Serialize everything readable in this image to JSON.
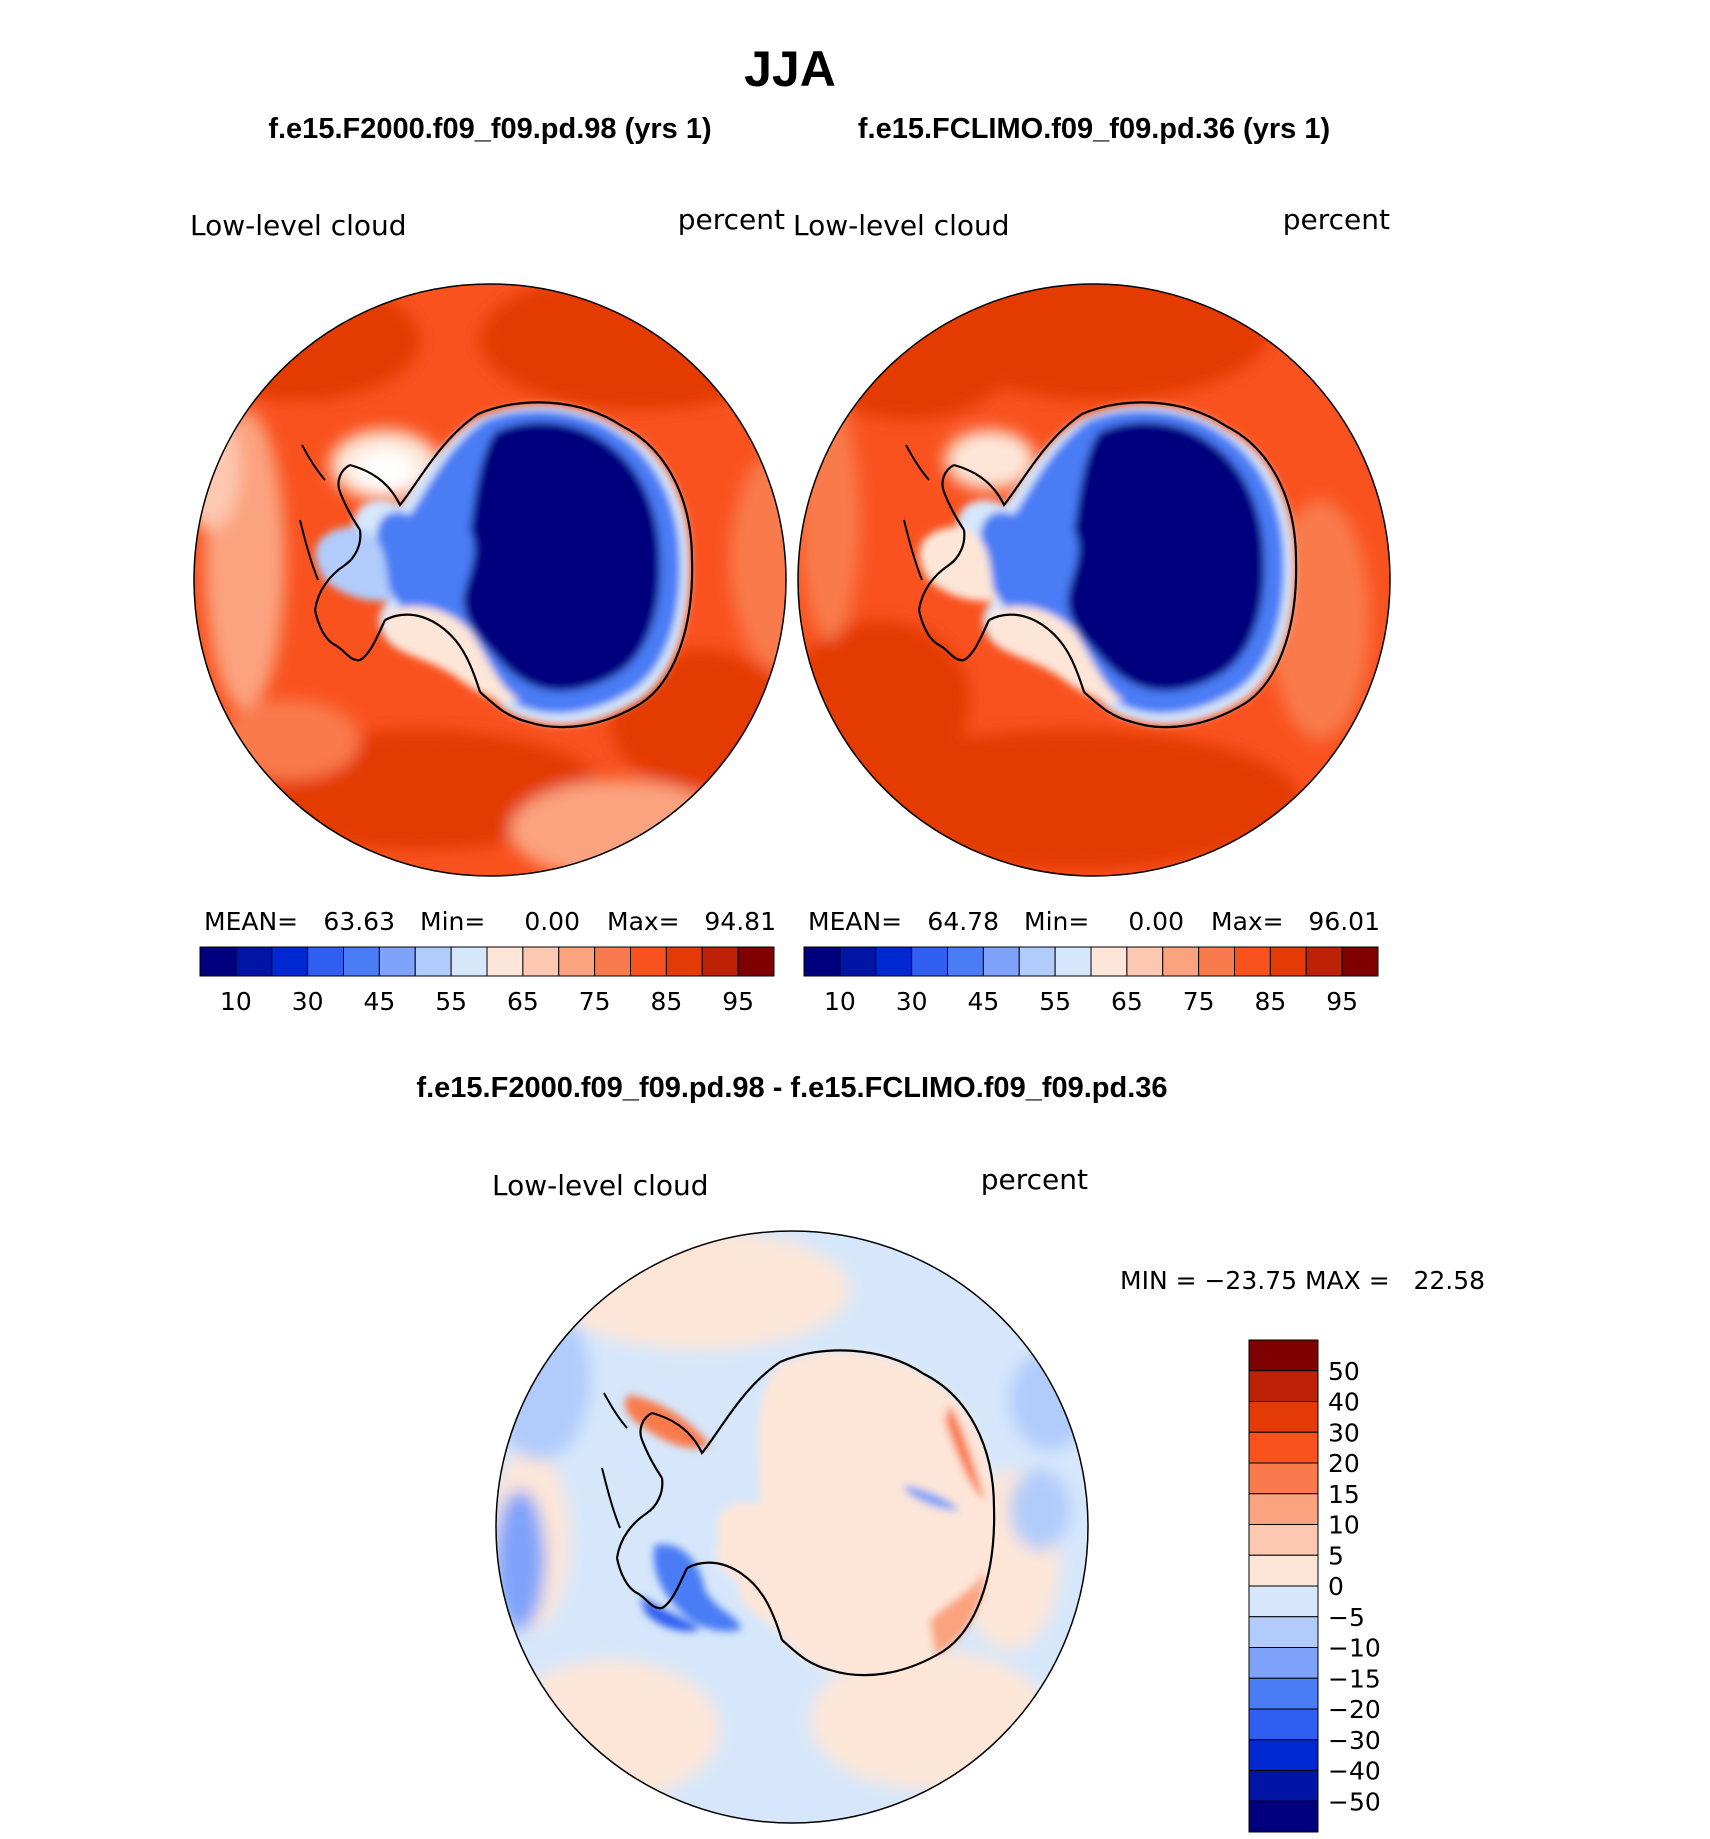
{
  "figure": {
    "title": "JJA"
  },
  "panels": [
    {
      "case_title": "f.e15.F2000.f09_f09.pd.98 (yrs 1)",
      "variable": "Low-level cloud",
      "units": "percent",
      "stats": {
        "mean_label": "MEAN=",
        "mean": "63.63",
        "min_label": "Min=",
        "min": "0.00",
        "max_label": "Max=",
        "max": "94.81"
      }
    },
    {
      "case_title": "f.e15.FCLIMO.f09_f09.pd.36 (yrs 1)",
      "variable": "Low-level cloud",
      "units": "percent",
      "stats": {
        "mean_label": "MEAN=",
        "mean": "64.78",
        "min_label": "Min=",
        "min": "0.00",
        "max_label": "Max=",
        "max": "96.01"
      }
    }
  ],
  "diff": {
    "title": "f.e15.F2000.f09_f09.pd.98 - f.e15.FCLIMO.f09_f09.pd.36",
    "variable": "Low-level cloud",
    "units": "percent",
    "minmax_text": "MIN = −23.75 MAX =   22.58"
  },
  "colors": {
    "abs_scale": [
      "#00007f",
      "#0014a6",
      "#0028d2",
      "#2f5ef0",
      "#4a7cf5",
      "#7fa3fa",
      "#b1ccfb",
      "#d6e7fb",
      "#fde6d8",
      "#fdc8b1",
      "#fba37f",
      "#f97a4c",
      "#f9521f",
      "#e33a06",
      "#bd2206",
      "#7f0000"
    ],
    "diff_scale": [
      "#00007f",
      "#0014a6",
      "#0028d2",
      "#2f5ef0",
      "#4a7cf5",
      "#7fa3fa",
      "#b1ccfb",
      "#d6e7fb",
      "#fde6d8",
      "#fdc8b1",
      "#fba37f",
      "#f97a4c",
      "#f9521f",
      "#e33a06",
      "#bd2206",
      "#7f0000"
    ]
  },
  "chart_data": [
    {
      "type": "heatmap",
      "title": "f.e15.F2000.f09_f09.pd.98 (yrs 1)",
      "projection": "south polar stereographic",
      "variable": "Low-level cloud",
      "units": "percent",
      "mean": 63.63,
      "min": 0.0,
      "max": 94.81,
      "contour_levels": [
        10,
        20,
        30,
        40,
        45,
        50,
        55,
        60,
        65,
        70,
        75,
        80,
        85,
        90,
        95
      ],
      "colorbar_tick_labels": [
        "10",
        "30",
        "45",
        "55",
        "65",
        "75",
        "85",
        "95"
      ]
    },
    {
      "type": "heatmap",
      "title": "f.e15.FCLIMO.f09_f09.pd.36 (yrs 1)",
      "projection": "south polar stereographic",
      "variable": "Low-level cloud",
      "units": "percent",
      "mean": 64.78,
      "min": 0.0,
      "max": 96.01,
      "contour_levels": [
        10,
        20,
        30,
        40,
        45,
        50,
        55,
        60,
        65,
        70,
        75,
        80,
        85,
        90,
        95
      ],
      "colorbar_tick_labels": [
        "10",
        "30",
        "45",
        "55",
        "65",
        "75",
        "85",
        "95"
      ]
    },
    {
      "type": "heatmap",
      "title": "f.e15.F2000.f09_f09.pd.98 - f.e15.FCLIMO.f09_f09.pd.36",
      "projection": "south polar stereographic",
      "variable": "Low-level cloud",
      "units": "percent",
      "min": -23.75,
      "max": 22.58,
      "contour_levels": [
        -50,
        -40,
        -30,
        -20,
        -15,
        -10,
        -5,
        0,
        5,
        10,
        15,
        20,
        30,
        40,
        50
      ],
      "colorbar_tick_labels": [
        "50",
        "40",
        "30",
        "20",
        "15",
        "10",
        "5",
        "0",
        "−5",
        "−10",
        "−15",
        "−20",
        "−30",
        "−40",
        "−50"
      ]
    }
  ]
}
